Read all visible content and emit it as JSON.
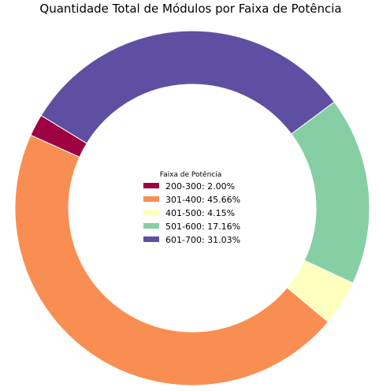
{
  "chart_data": {
    "type": "pie",
    "title": "Quantidade Total de Módulos por Faixa de Potência",
    "donut": true,
    "start_angle_deg": 148.5,
    "direction": "counterclockwise",
    "legend": {
      "title": "Faixa de Potência",
      "placement": "center"
    },
    "slices": [
      {
        "label": "200-300",
        "value": 2.0,
        "legend_text": "200-300: 2.00%",
        "color": "#9e0142"
      },
      {
        "label": "301-400",
        "value": 45.66,
        "legend_text": "301-400: 45.66%",
        "color": "#f98e52"
      },
      {
        "label": "401-500",
        "value": 4.15,
        "legend_text": "401-500: 4.15%",
        "color": "#ffffbe"
      },
      {
        "label": "501-600",
        "value": 17.16,
        "legend_text": "501-600: 17.16%",
        "color": "#86cfa5"
      },
      {
        "label": "601-700",
        "value": 31.03,
        "legend_text": "601-700: 31.03%",
        "color": "#5e4fa2"
      }
    ]
  }
}
